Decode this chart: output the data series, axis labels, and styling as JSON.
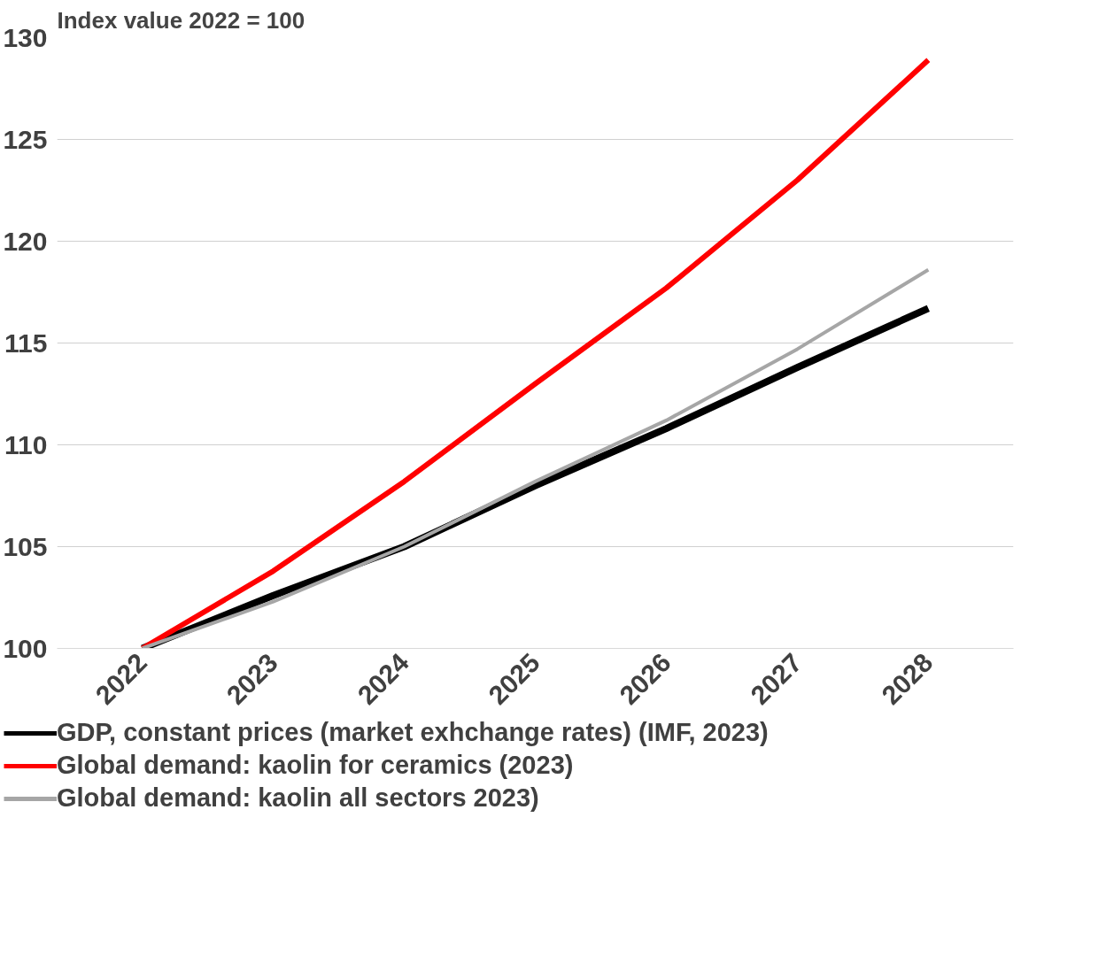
{
  "chart_data": {
    "type": "line",
    "ylabel": "Index value 2022 = 100",
    "categories": [
      "2022",
      "2023",
      "2024",
      "2025",
      "2026",
      "2027",
      "2028"
    ],
    "series": [
      {
        "name": "GDP, constant prices (market exhchange rates) (IMF, 2023)",
        "color": "#000000",
        "values": [
          100,
          102.6,
          105.0,
          108.0,
          110.8,
          113.8,
          116.7
        ]
      },
      {
        "name": "Global demand: kaolin for ceramics (2023)",
        "color": "#ff0000",
        "values": [
          100,
          103.8,
          108.2,
          113.0,
          117.7,
          123.0,
          128.9
        ]
      },
      {
        "name": "Global demand: kaolin all sectors 2023)",
        "color": "#a6a6a6",
        "values": [
          100,
          102.3,
          105.0,
          108.2,
          111.2,
          114.7,
          118.6
        ]
      }
    ],
    "ylim": [
      100,
      130
    ],
    "yticks": [
      100,
      105,
      110,
      115,
      120,
      125,
      130
    ],
    "grid": "y",
    "legend": "bottom",
    "marker": "none",
    "line_style": "solid"
  }
}
